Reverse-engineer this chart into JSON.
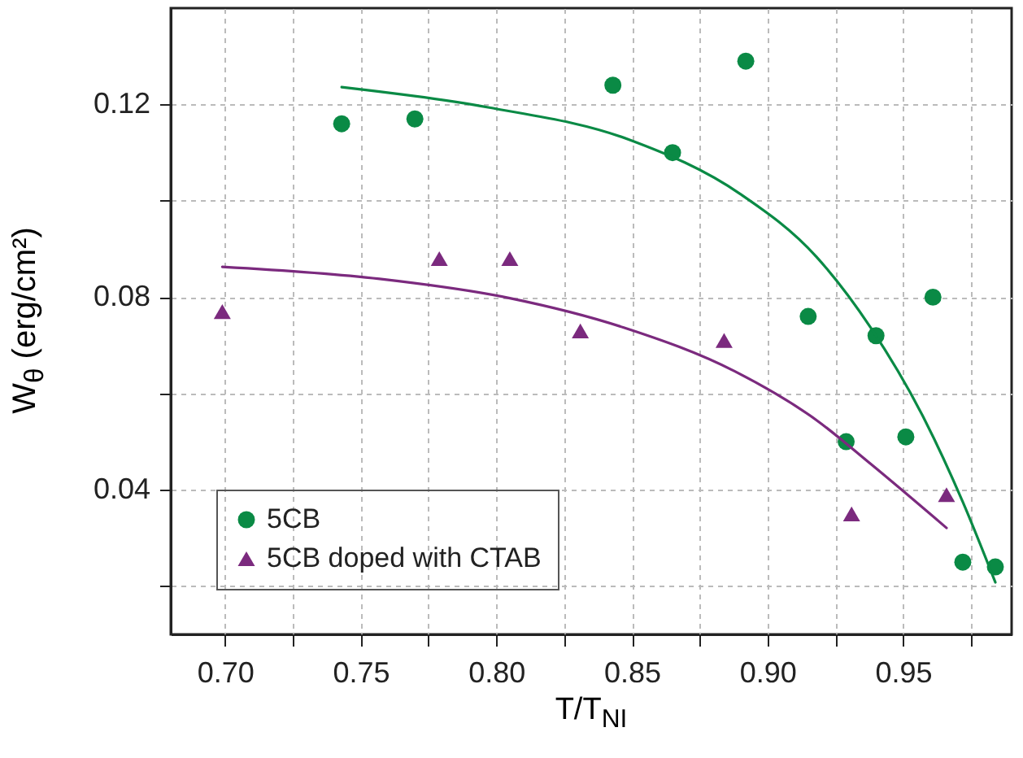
{
  "chart_data": {
    "type": "scatter",
    "xlabel": "T/T$_{NI}$",
    "ylabel": "W$_{θ}$ (erg/cm²)",
    "xlim": [
      0.68,
      0.99
    ],
    "ylim": [
      0.01,
      0.14
    ],
    "xticks": [
      {
        "value": 0.7,
        "label": "0.70"
      },
      {
        "value": 0.725,
        "label": null
      },
      {
        "value": 0.75,
        "label": "0.75"
      },
      {
        "value": 0.775,
        "label": null
      },
      {
        "value": 0.8,
        "label": "0.80"
      },
      {
        "value": 0.825,
        "label": null
      },
      {
        "value": 0.85,
        "label": "0.85"
      },
      {
        "value": 0.875,
        "label": null
      },
      {
        "value": 0.9,
        "label": "0.90"
      },
      {
        "value": 0.925,
        "label": null
      },
      {
        "value": 0.95,
        "label": "0.95"
      },
      {
        "value": 0.975,
        "label": null
      }
    ],
    "yticks": [
      {
        "value": 0.02,
        "label": null
      },
      0.04,
      {
        "value": 0.06,
        "label": null
      },
      0.08,
      {
        "value": 0.1,
        "label": null
      },
      0.12
    ],
    "grid": true,
    "legend": "bottom left",
    "series": [
      {
        "name": "5CB",
        "marker": "circle",
        "color": "#0a8a45",
        "x": [
          0.743,
          0.77,
          0.843,
          0.865,
          0.892,
          0.915,
          0.929,
          0.94,
          0.951,
          0.961,
          0.972,
          0.984
        ],
        "values": [
          0.116,
          0.117,
          0.124,
          0.11,
          0.129,
          0.076,
          0.05,
          0.072,
          0.051,
          0.08,
          0.025,
          0.024
        ]
      },
      {
        "name": "5CB doped with CTAB",
        "marker": "triangle",
        "color": "#7b2a7e",
        "x": [
          0.699,
          0.779,
          0.805,
          0.831,
          0.884,
          0.931,
          0.966
        ],
        "values": [
          0.077,
          0.088,
          0.088,
          0.073,
          0.071,
          0.035,
          0.039
        ]
      },
      {
        "type": "line",
        "color": "#0a8a45",
        "x": [
          0.743,
          0.797,
          0.849,
          0.89,
          0.918,
          0.938,
          0.958,
          0.972,
          0.984
        ],
        "values": [
          0.1236,
          0.1194,
          0.1127,
          0.1014,
          0.0884,
          0.0737,
          0.0545,
          0.0375,
          0.0208
        ]
      },
      {
        "type": "line",
        "color": "#7b2a7e",
        "x": [
          0.699,
          0.757,
          0.805,
          0.847,
          0.888,
          0.918,
          0.938,
          0.966
        ],
        "values": [
          0.0863,
          0.0838,
          0.0798,
          0.0737,
          0.0646,
          0.0545,
          0.0454,
          0.0321
        ]
      }
    ]
  }
}
